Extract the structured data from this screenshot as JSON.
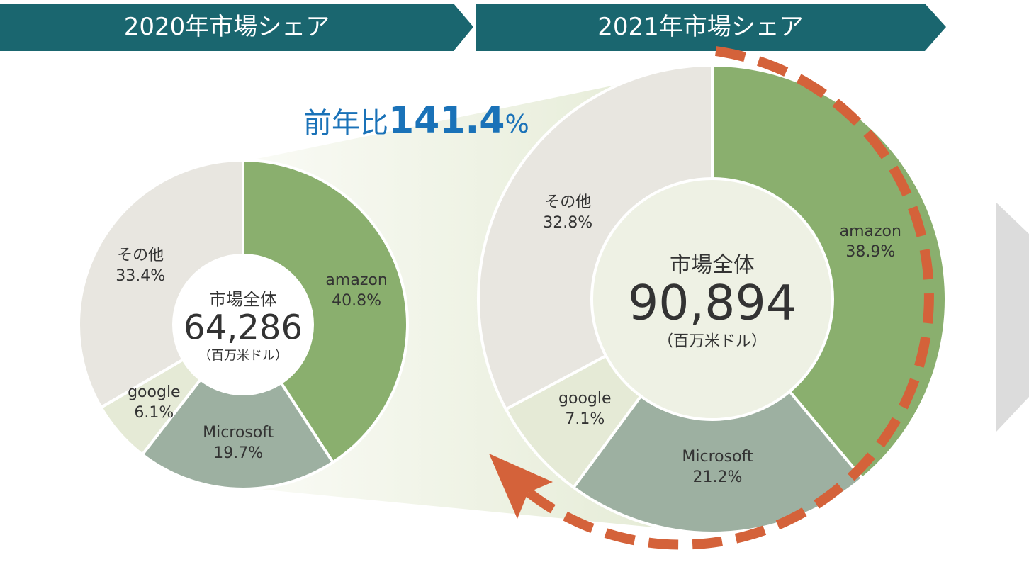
{
  "chart_data": [
    {
      "type": "pie",
      "title": "2020年市場シェア",
      "categories": [
        "amazon",
        "Microsoft",
        "google",
        "その他"
      ],
      "values": [
        40.8,
        19.7,
        6.1,
        33.4
      ],
      "value_labels": [
        "40.8%",
        "19.7%",
        "6.1%",
        "33.4%"
      ],
      "colors": [
        "#8aaf6e",
        "#9db0a1",
        "#e5ead6",
        "#e8e6e0"
      ],
      "center_title": "市場全体",
      "total": 64286,
      "total_label": "64,286",
      "total_unit": "（百万米ドル）"
    },
    {
      "type": "pie",
      "title": "2021年市場シェア",
      "categories": [
        "amazon",
        "Microsoft",
        "google",
        "その他"
      ],
      "values": [
        38.9,
        21.2,
        7.1,
        32.8
      ],
      "value_labels": [
        "38.9%",
        "21.2%",
        "7.1%",
        "32.8%"
      ],
      "colors": [
        "#8aaf6e",
        "#9db0a1",
        "#e5ead6",
        "#e8e6e0"
      ],
      "center_title": "市場全体",
      "total": 90894,
      "total_label": "90,894",
      "total_unit": "（百万米ドル）"
    }
  ],
  "growth": {
    "label": "前年比",
    "value": 141.4,
    "unit": "%"
  }
}
